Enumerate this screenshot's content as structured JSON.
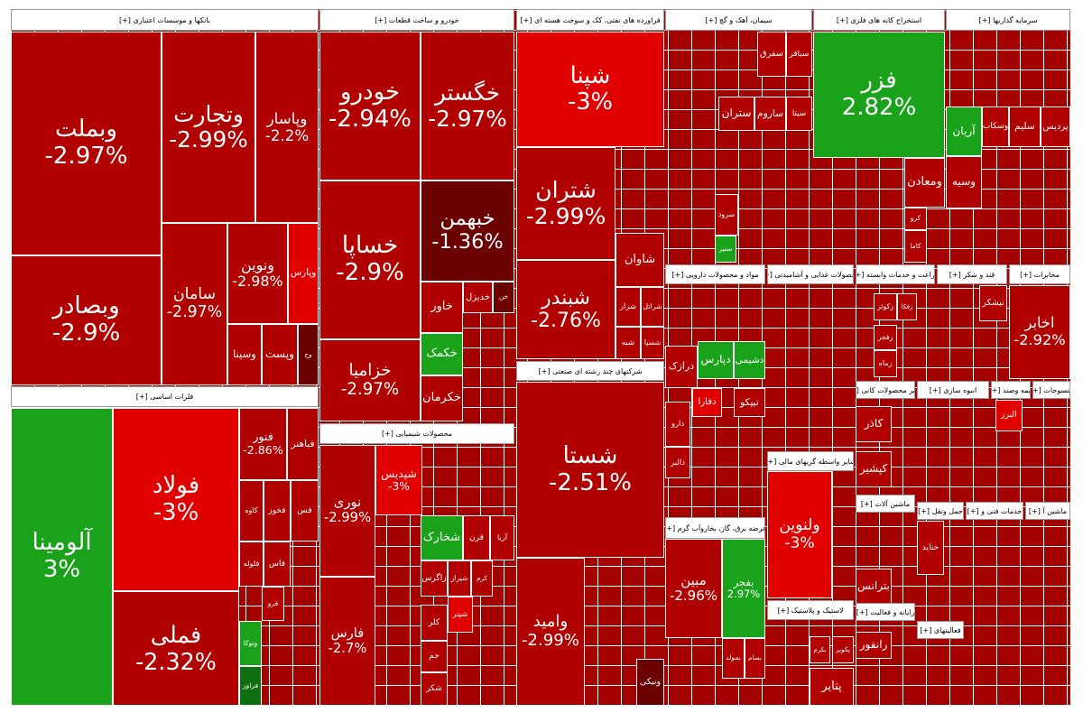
{
  "sectors": [
    {
      "title": "بانکها و موسسات اعتباری [+]",
      "tiles": [
        {
          "name": "وبملت",
          "change": "-2.97%",
          "color": "#b00000"
        },
        {
          "name": "وبصادر",
          "change": "-2.9%",
          "color": "#b00000"
        },
        {
          "name": "وتجارت",
          "change": "-2.99%",
          "color": "#b00000"
        },
        {
          "name": "وپاسار",
          "change": "-2.2%",
          "color": "#b00000"
        },
        {
          "name": "سامان",
          "change": "-2.97%",
          "color": "#b00000"
        },
        {
          "name": "ونوین",
          "change": "-2.98%",
          "color": "#b00000"
        },
        {
          "name": "وپارس",
          "color": "#e00000"
        },
        {
          "name": "وسینا",
          "color": "#b00000"
        },
        {
          "name": "وپست",
          "color": "#b00000"
        },
        {
          "name": "وخ",
          "color": "#6b0000"
        }
      ]
    },
    {
      "title": "فلزات اساسی [+]",
      "tiles": [
        {
          "name": "آلومینا",
          "change": "3%",
          "color": "#1aa31a"
        },
        {
          "name": "فولاد",
          "change": "-3%",
          "color": "#e00000"
        },
        {
          "name": "فملی",
          "change": "-2.32%",
          "color": "#b00000"
        },
        {
          "name": "فنور",
          "change": "-2.86%",
          "color": "#b00000"
        },
        {
          "name": "فباهنر",
          "color": "#b00000"
        },
        {
          "name": "کاوه",
          "color": "#b00000"
        },
        {
          "name": "فخوز",
          "color": "#b00000"
        },
        {
          "name": "فس",
          "color": "#b00000"
        },
        {
          "name": "فلوله",
          "color": "#b00000"
        },
        {
          "name": "فاس",
          "color": "#b00000"
        },
        {
          "name": "فرو",
          "color": "#b00000"
        },
        {
          "name": "ونوکا",
          "color": "#1aa31a"
        },
        {
          "name": "فراور",
          "color": "#0f6e0f"
        }
      ]
    },
    {
      "title": "خودرو و ساخت قطعات [+]",
      "tiles": [
        {
          "name": "خودرو",
          "change": "-2.94%",
          "color": "#b00000"
        },
        {
          "name": "خگستر",
          "change": "-2.97%",
          "color": "#b00000"
        },
        {
          "name": "خساپا",
          "change": "-2.9%",
          "color": "#b00000"
        },
        {
          "name": "خبهمن",
          "change": "-1.36%",
          "color": "#6b0000"
        },
        {
          "name": "خزامیا",
          "change": "-2.97%",
          "color": "#b00000"
        },
        {
          "name": "خاور",
          "color": "#b00000"
        },
        {
          "name": "خدیزل",
          "color": "#b00000"
        },
        {
          "name": "خن",
          "color": "#6b0000"
        },
        {
          "name": "خکمک",
          "color": "#1aa31a"
        },
        {
          "name": "خکرمان",
          "color": "#b00000"
        }
      ]
    },
    {
      "title": "محصولات شیمیایی [+]",
      "tiles": [
        {
          "name": "نوری",
          "change": "-2.99%",
          "color": "#b00000"
        },
        {
          "name": "فارس",
          "change": "-2.7%",
          "color": "#b00000"
        },
        {
          "name": "شپدیس",
          "change": "-3%",
          "color": "#e00000"
        },
        {
          "name": "شخارک",
          "color": "#1aa31a"
        },
        {
          "name": "قرن",
          "color": "#b00000"
        },
        {
          "name": "آریا",
          "color": "#b00000"
        },
        {
          "name": "زاگرس",
          "color": "#b00000"
        },
        {
          "name": "شیراز",
          "color": "#b00000"
        },
        {
          "name": "کرم",
          "color": "#b00000"
        },
        {
          "name": "شپتر",
          "color": "#e00000"
        },
        {
          "name": "کلر",
          "color": "#b00000"
        },
        {
          "name": "جم",
          "color": "#b00000"
        },
        {
          "name": "شکر",
          "color": "#b00000"
        }
      ]
    },
    {
      "title": "فراورده های نفتی، کک و سوخت هسته ای [+]",
      "tiles": [
        {
          "name": "شپنا",
          "change": "-3%",
          "color": "#e00000"
        },
        {
          "name": "شتران",
          "change": "-2.99%",
          "color": "#b00000"
        },
        {
          "name": "شبندر",
          "change": "-2.76%",
          "color": "#b00000"
        },
        {
          "name": "شاوان",
          "color": "#b00000"
        },
        {
          "name": "شراز",
          "color": "#b00000"
        },
        {
          "name": "شراتل",
          "color": "#b00000"
        },
        {
          "name": "شبه",
          "color": "#b00000"
        },
        {
          "name": "شسپا",
          "color": "#b00000"
        }
      ]
    },
    {
      "title": "شرکتهای چند رشته ای صنعتی [+]",
      "tiles": [
        {
          "name": "شستا",
          "change": "-2.51%",
          "color": "#b00000"
        },
        {
          "name": "وامید",
          "change": "-2.99%",
          "color": "#b00000"
        },
        {
          "name": "ونیکی",
          "color": "#6b0000"
        }
      ]
    },
    {
      "title": "سیمان، آهک و گچ [+]",
      "tiles": [
        {
          "name": "سباقر",
          "color": "#b00000"
        },
        {
          "name": "سفرق",
          "color": "#b00000"
        },
        {
          "name": "سیتا",
          "color": "#b00000"
        },
        {
          "name": "ساروم",
          "color": "#b00000"
        },
        {
          "name": "ستران",
          "color": "#b00000"
        },
        {
          "name": "سرود",
          "color": "#b00000"
        },
        {
          "name": "سنیر",
          "color": "#1aa31a"
        }
      ]
    },
    {
      "title": "استخراج کانه های فلزی [+]",
      "tiles": [
        {
          "name": "فزر",
          "change": "2.82%",
          "color": "#1aa31a"
        },
        {
          "name": "ومعادن",
          "color": "#b00000"
        },
        {
          "name": "کرو",
          "color": "#b00000"
        },
        {
          "name": "کاما",
          "color": "#b00000"
        }
      ]
    },
    {
      "title": "سرمایه گذاریها [+]",
      "tiles": [
        {
          "name": "پردیس",
          "color": "#b00000"
        },
        {
          "name": "سلیم",
          "color": "#b00000"
        },
        {
          "name": "وسکاب",
          "color": "#b00000"
        },
        {
          "name": "آریان",
          "color": "#1aa31a"
        },
        {
          "name": "وسیه",
          "color": "#b00000"
        }
      ]
    },
    {
      "title": "مواد و محصولات دارویی [+]",
      "tiles": [
        {
          "name": "دارو",
          "color": "#b00000"
        },
        {
          "name": "دالبر",
          "color": "#b00000"
        },
        {
          "name": "درازک",
          "color": "#b00000"
        },
        {
          "name": "دپارس",
          "color": "#1aa31a"
        },
        {
          "name": "دشیمی",
          "color": "#1aa31a"
        },
        {
          "name": "دفارا",
          "color": "#e00000"
        },
        {
          "name": "تیپکو",
          "color": "#b00000"
        }
      ]
    },
    {
      "title": "محصولات غذایی و آشامیدنی [+]",
      "tiles": []
    },
    {
      "title": "زراعت و خدمات وابسته [+]",
      "tiles": [
        {
          "name": "زکوثر",
          "color": "#b00000"
        },
        {
          "name": "زفکا",
          "color": "#b00000"
        },
        {
          "name": "زفجر",
          "color": "#b00000"
        },
        {
          "name": "زماه",
          "color": "#b00000"
        }
      ]
    },
    {
      "title": "قند و شکر [+]",
      "tiles": [
        {
          "name": "نیشکر",
          "color": "#b00000"
        }
      ]
    },
    {
      "title": "مخابرات [+]",
      "tiles": [
        {
          "name": "اخابر",
          "change": "-2.92%",
          "color": "#b00000"
        }
      ]
    },
    {
      "title": "سایر واسطه گریهای مالی [+]",
      "tiles": [
        {
          "name": "ولنوین",
          "change": "-3%",
          "color": "#e00000"
        }
      ]
    },
    {
      "title": "عرضه برق، گاز، بخاروآب گرم [+]",
      "tiles": [
        {
          "name": "مبین",
          "change": "-2.96%",
          "color": "#b00000"
        },
        {
          "name": "بفجر",
          "change": "2.97%",
          "color": "#1aa31a"
        },
        {
          "name": "بمولد",
          "color": "#b00000"
        },
        {
          "name": "بسام",
          "color": "#b00000"
        }
      ]
    },
    {
      "title": "لاستیک و پلاستیک [+]",
      "tiles": [
        {
          "name": "بکرم",
          "color": "#b00000"
        },
        {
          "name": "پکویر",
          "color": "#b00000"
        },
        {
          "name": "پتایر",
          "color": "#b00000"
        }
      ]
    },
    {
      "title": "سایر محصولات کانی [+]",
      "tiles": [
        {
          "name": "کاذر",
          "color": "#b00000"
        },
        {
          "name": "کپشیر",
          "color": "#b00000"
        }
      ]
    },
    {
      "title": "انبوه سازی [+]",
      "tiles": []
    },
    {
      "title": "بیمه وصند [+]",
      "tiles": [
        {
          "name": "البرز",
          "color": "#e00000"
        }
      ]
    },
    {
      "title": "منسوجات [+]",
      "tiles": []
    },
    {
      "title": "ماشین آلات [+]",
      "tiles": [
        {
          "name": "بترانس",
          "color": "#b00000"
        }
      ]
    },
    {
      "title": "حمل ونقل [+]",
      "tiles": [
        {
          "name": "حتاید",
          "color": "#b00000"
        }
      ]
    },
    {
      "title": "خدمات فنی و [+]",
      "tiles": []
    },
    {
      "title": "ماشین آ [+]",
      "tiles": []
    },
    {
      "title": "رایانه و فعالیت [+]",
      "tiles": [
        {
          "name": "رانفور",
          "color": "#b00000"
        }
      ]
    },
    {
      "title": "فعالیتهای [+]",
      "tiles": []
    }
  ]
}
